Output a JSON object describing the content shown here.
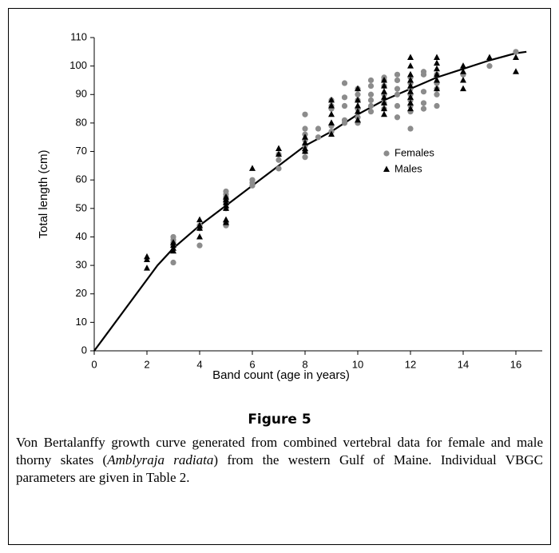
{
  "chart_data": {
    "type": "scatter",
    "y_label": "Total length (cm)",
    "x_label": "Band count (age in years)",
    "xlim": [
      0,
      17
    ],
    "xticks": [
      0,
      2,
      4,
      6,
      8,
      10,
      12,
      14,
      16
    ],
    "ylim": [
      0,
      110
    ],
    "yticks": [
      0,
      10,
      20,
      30,
      40,
      50,
      60,
      70,
      80,
      90,
      100,
      110
    ],
    "series": [
      {
        "name": "Females",
        "color": "#8c8c8c",
        "marker": "circle",
        "x": [
          3,
          3,
          3,
          3,
          3,
          4,
          4,
          4,
          5,
          5,
          5,
          5,
          5,
          5,
          5,
          5,
          6,
          6,
          6,
          7,
          7,
          7,
          8,
          8,
          8,
          8,
          8,
          8,
          8,
          8.5,
          8.5,
          9,
          9,
          9,
          9,
          9,
          9.5,
          9.5,
          9.5,
          9.5,
          9.5,
          10,
          10,
          10,
          10,
          10,
          10,
          10.5,
          10.5,
          10.5,
          10.5,
          10.5,
          10.5,
          11,
          11,
          11,
          11,
          11,
          11,
          11.5,
          11.5,
          11.5,
          11.5,
          11.5,
          11.5,
          12,
          12,
          12,
          12,
          12,
          12,
          12,
          12,
          12.5,
          12.5,
          12.5,
          12.5,
          12.5,
          13,
          13,
          13,
          13,
          13,
          14,
          15,
          16
        ],
        "values": [
          31,
          37,
          38,
          39,
          40,
          37,
          43,
          44,
          44,
          45,
          50,
          52,
          53,
          54,
          55,
          56,
          58,
          59,
          60,
          64,
          67,
          69,
          68,
          70,
          72,
          74,
          76,
          78,
          83,
          75,
          78,
          77,
          79,
          85,
          86,
          88,
          80,
          81,
          86,
          89,
          94,
          80,
          82,
          85,
          88,
          90,
          92,
          84,
          86,
          88,
          90,
          93,
          95,
          85,
          87,
          90,
          93,
          95,
          96,
          82,
          86,
          90,
          92,
          95,
          97,
          78,
          84,
          86,
          88,
          90,
          92,
          94,
          96,
          85,
          87,
          91,
          97,
          98,
          86,
          90,
          92,
          94,
          97,
          97,
          100,
          105
        ]
      },
      {
        "name": "Males",
        "color": "#000000",
        "marker": "triangle",
        "x": [
          2,
          2,
          2,
          3,
          3,
          3,
          3,
          4,
          4,
          4,
          4,
          5,
          5,
          5,
          5,
          5,
          5,
          5,
          6,
          7,
          7,
          8,
          8,
          8,
          8,
          9,
          9,
          9,
          9,
          9,
          10,
          10,
          10,
          10,
          10,
          11,
          11,
          11,
          11,
          11,
          11,
          11,
          12,
          12,
          12,
          12,
          12,
          12,
          12,
          12,
          12,
          13,
          13,
          13,
          13,
          13,
          13,
          14,
          14,
          14,
          14,
          15,
          16,
          16
        ],
        "values": [
          29,
          32,
          33,
          35,
          36,
          37,
          38,
          40,
          43,
          44,
          46,
          45,
          46,
          50,
          51,
          52,
          53,
          54,
          64,
          69,
          71,
          70,
          71,
          73,
          75,
          76,
          80,
          83,
          86,
          88,
          81,
          84,
          86,
          88,
          92,
          83,
          85,
          87,
          89,
          91,
          93,
          95,
          85,
          87,
          89,
          91,
          93,
          95,
          97,
          100,
          103,
          92,
          95,
          97,
          99,
          101,
          103,
          92,
          95,
          98,
          100,
          103,
          98,
          103
        ]
      }
    ],
    "curve": {
      "color": "#000000",
      "x": [
        0,
        2.4,
        3,
        4,
        5,
        6,
        7,
        8,
        9,
        10,
        11,
        12,
        13,
        14,
        15,
        16,
        16.4
      ],
      "values": [
        0,
        30,
        36,
        44,
        51,
        58,
        65,
        72,
        77,
        83,
        88,
        92,
        96,
        99,
        102,
        104.5,
        105
      ]
    }
  },
  "figure_label": "Figure 5",
  "caption": {
    "before": "Von Bertalanffy growth curve generated from combined vertebral data for female and male thorny skates (",
    "species": "Amblyraja radiata",
    "after": ") from the western Gulf of Maine. Individual VBGC parameters are given in Table 2."
  }
}
